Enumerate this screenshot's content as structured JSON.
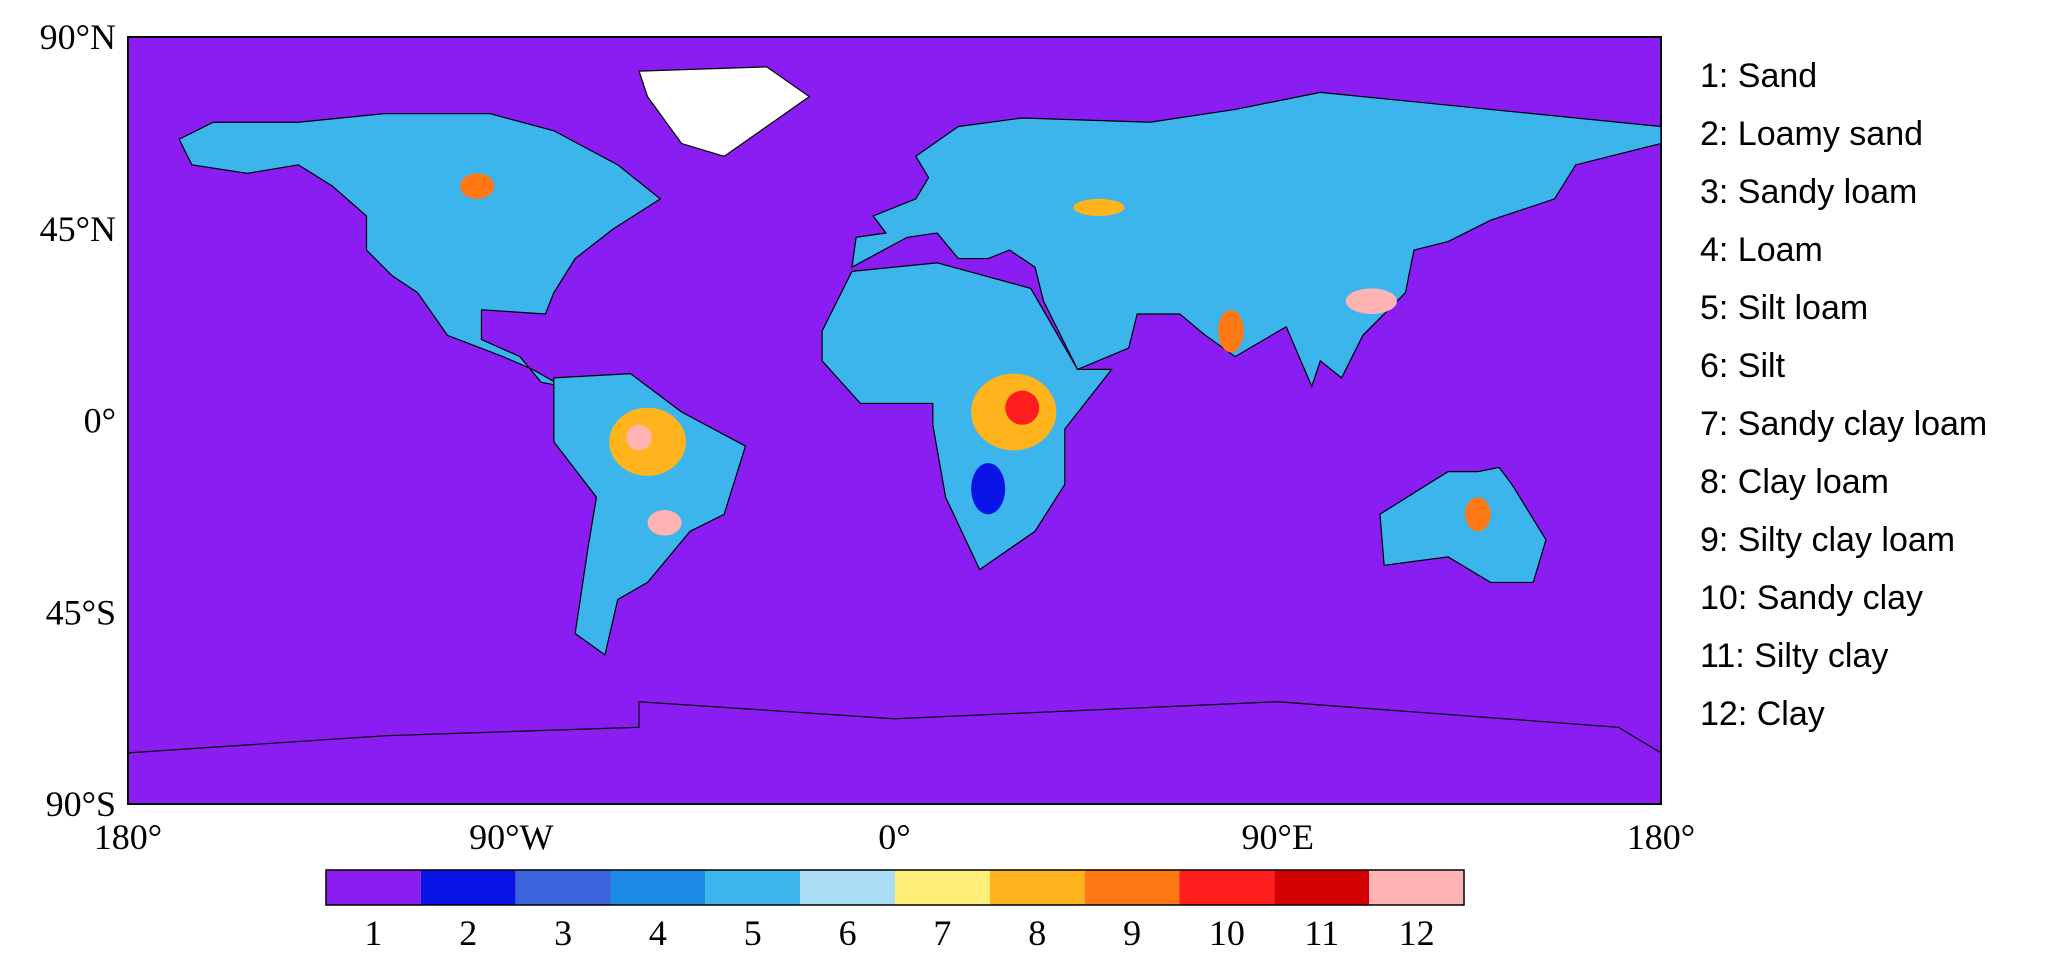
{
  "map": {
    "x_ticks": [
      "180°",
      "90°W",
      "0°",
      "90°E",
      "180°"
    ],
    "y_ticks": [
      "90°N",
      "45°N",
      "0°",
      "45°S",
      "90°S"
    ],
    "legend": [
      "1: Sand",
      "2: Loamy sand",
      "3: Sandy loam",
      "4: Loam",
      "5: Silt loam",
      "6: Silt",
      "7: Sandy clay loam",
      "8: Clay loam",
      "9: Silty clay loam",
      "10: Sandy clay",
      "11: Silty clay",
      "12: Clay"
    ],
    "colorbar": {
      "labels": [
        "1",
        "2",
        "3",
        "4",
        "5",
        "6",
        "7",
        "8",
        "9",
        "10",
        "11",
        "12"
      ],
      "colors": [
        "#8a1ef2",
        "#0a14e6",
        "#3c64dc",
        "#1e8ce6",
        "#3cb4ec",
        "#aadcf5",
        "#fff07a",
        "#ffb41e",
        "#ff7814",
        "#ff1e1e",
        "#d20000",
        "#ffb4b4"
      ]
    }
  }
}
